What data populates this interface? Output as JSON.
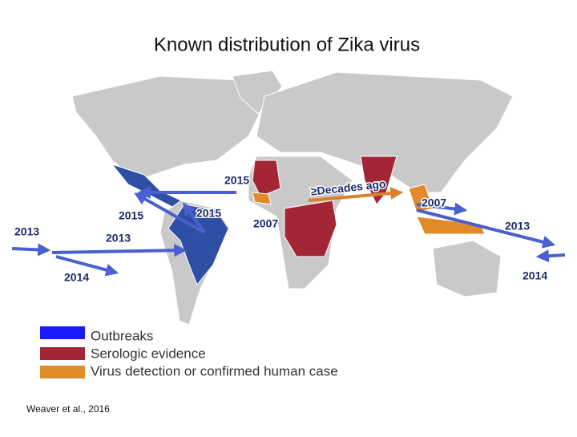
{
  "title": "Known distribution of Zika virus",
  "map": {
    "labels": [
      "2015",
      "2015",
      "2015",
      "2013",
      "2013",
      "2014",
      "2007",
      "≥Decades ago",
      "2007",
      "2013",
      "2014"
    ]
  },
  "legend": [
    "Outbreaks",
    "Serologic evidence",
    "Virus detection or confirmed human case"
  ],
  "citation": "Weaver et al., 2016"
}
